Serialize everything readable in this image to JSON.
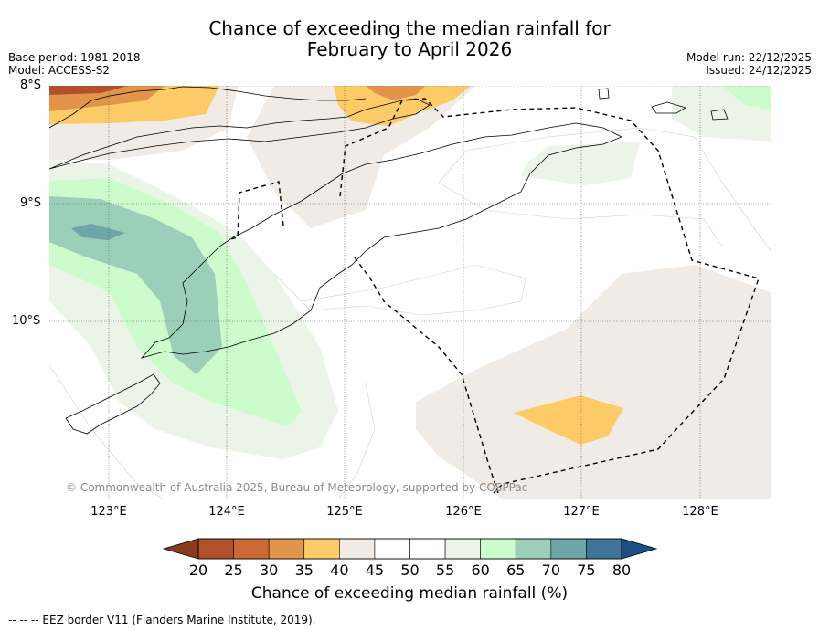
{
  "title_line1": "Chance of exceeding the median rainfall for",
  "title_line2": "February to April 2026",
  "base_period": "Base period: 1981-2018",
  "model": "Model: ACCESS-S2",
  "model_run": "Model run: 22/12/2025",
  "issued": "Issued: 24/12/2025",
  "lat_labels": [
    "8°S",
    "9°S",
    "10°S"
  ],
  "lon_labels": [
    "123°E",
    "124°E",
    "125°E",
    "126°E",
    "127°E",
    "128°E"
  ],
  "copyright": "© Commonwealth of Australia 2025, Bureau of Meteorology, supported by COSPPac",
  "colorbar": {
    "title": "Chance of exceeding median rainfall (%)",
    "ticks": [
      "20",
      "25",
      "30",
      "35",
      "40",
      "45",
      "50",
      "55",
      "60",
      "65",
      "70",
      "75",
      "80"
    ],
    "colors": [
      "#8b3a1e",
      "#b3502c",
      "#cc6a35",
      "#e3944b",
      "#fdca68",
      "#f0ebe5",
      "#ffffff",
      "#ffffff",
      "#eaf5e8",
      "#cdfccc",
      "#9bcfba",
      "#6da6a6",
      "#3e7596",
      "#1c4f86"
    ]
  },
  "footer": "--  --  -- EEZ border V11 (Flanders Marine Institute, 2019)."
}
